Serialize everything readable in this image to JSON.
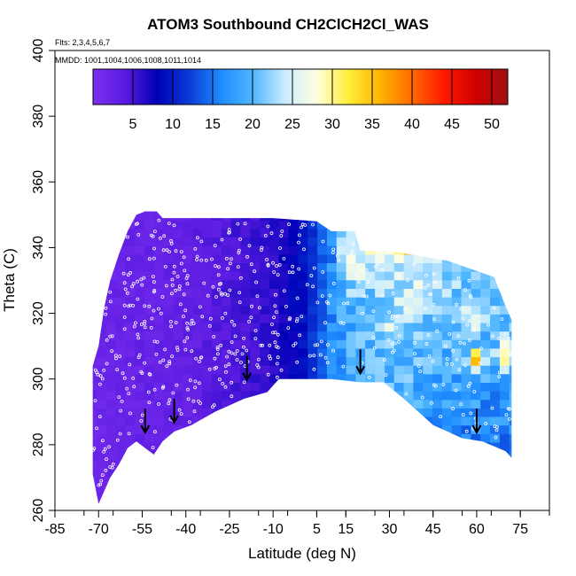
{
  "chart_data": {
    "type": "heatmap",
    "title": "ATOM3 Southbound CH2ClCH2Cl_WAS",
    "flights_note": "Flts: 2,3,4,5,6,7",
    "dates_note": "MMDD: 1001,1004,1006,1008,1011,1014",
    "xlabel": "Latitude (deg N)",
    "ylabel": "Theta (C)",
    "xlim": [
      -85,
      85
    ],
    "ylim": [
      260,
      400
    ],
    "x_tick_labels": [
      "-85",
      "-70",
      "-55",
      "-40",
      "-25",
      "-10",
      "5",
      "15",
      "30",
      "45",
      "60",
      "75"
    ],
    "x_tick_values": [
      -85,
      -70,
      -55,
      -40,
      -25,
      -10,
      5,
      15,
      30,
      45,
      60,
      75
    ],
    "y_tick_labels": [
      "260",
      "280",
      "300",
      "320",
      "340",
      "360",
      "380",
      "400"
    ],
    "y_tick_values": [
      260,
      280,
      300,
      320,
      340,
      360,
      380,
      400
    ],
    "colorbar": {
      "range": [
        0,
        52
      ],
      "tick_labels": [
        "5",
        "10",
        "15",
        "20",
        "25",
        "30",
        "35",
        "40",
        "45",
        "50"
      ],
      "tick_values": [
        5,
        10,
        15,
        20,
        25,
        30,
        35,
        40,
        45,
        50
      ],
      "colors": [
        "#7b2ff0",
        "#5a1be0",
        "#0000b8",
        "#0a3ad6",
        "#1e8cff",
        "#4fb6ff",
        "#c8ecff",
        "#ffffe0",
        "#ffee3a",
        "#ffb400",
        "#ff6a00",
        "#ff1a00",
        "#d00000",
        "#a01010"
      ]
    },
    "tropopause_arrows_lat": [
      -54,
      -44,
      -19,
      20,
      60
    ],
    "tropopause_arrows_theta": [
      285,
      288,
      301,
      303,
      285
    ],
    "field_lat_range": [
      -72,
      72
    ],
    "field_theta_range": [
      262,
      351
    ],
    "mean_value_by_lat": [
      {
        "lat": -70,
        "value": 2
      },
      {
        "lat": -40,
        "value": 3
      },
      {
        "lat": -10,
        "value": 6
      },
      {
        "lat": 0,
        "value": 9
      },
      {
        "lat": 10,
        "value": 16
      },
      {
        "lat": 30,
        "value": 20
      },
      {
        "lat": 60,
        "value": 18
      }
    ]
  }
}
